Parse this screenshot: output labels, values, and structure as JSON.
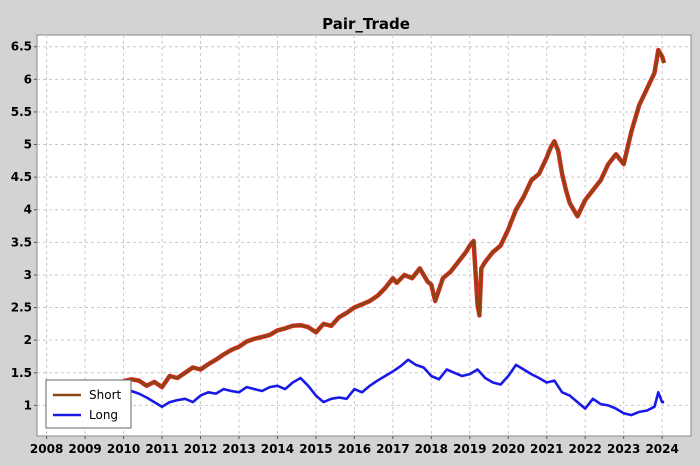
{
  "chart_data": {
    "type": "line",
    "title": "Pair_Trade",
    "xlabel": "",
    "ylabel": "",
    "xlim": [
      2007.75,
      2024.75
    ],
    "ylim": [
      0.53,
      6.68
    ],
    "grid": true,
    "legend_position": "bottom-left",
    "x_ticks": [
      "2008",
      "2009",
      "2010",
      "2011",
      "2012",
      "2013",
      "2014",
      "2015",
      "2016",
      "2017",
      "2018",
      "2019",
      "2020",
      "2021",
      "2022",
      "2023",
      "2024"
    ],
    "y_ticks": [
      "1",
      "1.5",
      "2",
      "2.5",
      "3",
      "3.5",
      "4",
      "4.5",
      "5",
      "5.5",
      "6",
      "6.5"
    ],
    "colors": {
      "background": "#d3d3d3",
      "plot_background": "#ffffff",
      "grid": "#c8c8c8"
    },
    "series": [
      {
        "name": "Short",
        "color": "#8b4513",
        "highlight_color": "#e00000",
        "x": [
          2010.0,
          2010.2,
          2010.4,
          2010.6,
          2010.8,
          2011.0,
          2011.2,
          2011.4,
          2011.6,
          2011.8,
          2012.0,
          2012.2,
          2012.4,
          2012.6,
          2012.8,
          2013.0,
          2013.2,
          2013.4,
          2013.6,
          2013.8,
          2014.0,
          2014.2,
          2014.4,
          2014.6,
          2014.8,
          2015.0,
          2015.2,
          2015.4,
          2015.6,
          2015.8,
          2016.0,
          2016.2,
          2016.4,
          2016.6,
          2016.8,
          2017.0,
          2017.1,
          2017.3,
          2017.5,
          2017.7,
          2017.9,
          2018.0,
          2018.1,
          2018.3,
          2018.5,
          2018.7,
          2018.9,
          2019.0,
          2019.1,
          2019.2,
          2019.25,
          2019.3,
          2019.4,
          2019.6,
          2019.8,
          2020.0,
          2020.2,
          2020.4,
          2020.6,
          2020.8,
          2021.0,
          2021.1,
          2021.2,
          2021.3,
          2021.4,
          2021.5,
          2021.6,
          2021.8,
          2022.0,
          2022.2,
          2022.4,
          2022.6,
          2022.8,
          2023.0,
          2023.2,
          2023.4,
          2023.6,
          2023.8,
          2023.9,
          2024.0,
          2024.05
        ],
        "values": [
          1.37,
          1.4,
          1.38,
          1.3,
          1.36,
          1.28,
          1.45,
          1.42,
          1.5,
          1.58,
          1.55,
          1.63,
          1.7,
          1.78,
          1.85,
          1.9,
          1.98,
          2.02,
          2.05,
          2.08,
          2.15,
          2.18,
          2.22,
          2.23,
          2.2,
          2.12,
          2.25,
          2.22,
          2.35,
          2.42,
          2.5,
          2.55,
          2.6,
          2.68,
          2.8,
          2.95,
          2.88,
          3.0,
          2.95,
          3.1,
          2.9,
          2.85,
          2.6,
          2.95,
          3.05,
          3.2,
          3.35,
          3.45,
          3.52,
          2.55,
          2.38,
          3.1,
          3.2,
          3.35,
          3.45,
          3.7,
          4.0,
          4.2,
          4.45,
          4.55,
          4.8,
          4.95,
          5.05,
          4.9,
          4.55,
          4.3,
          4.1,
          3.9,
          4.15,
          4.3,
          4.45,
          4.7,
          4.85,
          4.7,
          5.2,
          5.6,
          5.85,
          6.1,
          6.45,
          6.35,
          6.25
        ]
      },
      {
        "name": "Long",
        "color": "#1a1ae6",
        "x": [
          2010.0,
          2010.2,
          2010.4,
          2010.6,
          2010.8,
          2011.0,
          2011.2,
          2011.4,
          2011.6,
          2011.8,
          2012.0,
          2012.2,
          2012.4,
          2012.6,
          2012.8,
          2013.0,
          2013.2,
          2013.4,
          2013.6,
          2013.8,
          2014.0,
          2014.2,
          2014.4,
          2014.6,
          2014.8,
          2015.0,
          2015.2,
          2015.4,
          2015.6,
          2015.8,
          2016.0,
          2016.2,
          2016.4,
          2016.6,
          2016.8,
          2017.0,
          2017.2,
          2017.4,
          2017.6,
          2017.8,
          2018.0,
          2018.2,
          2018.4,
          2018.6,
          2018.8,
          2019.0,
          2019.2,
          2019.4,
          2019.6,
          2019.8,
          2020.0,
          2020.2,
          2020.4,
          2020.6,
          2020.8,
          2021.0,
          2021.2,
          2021.4,
          2021.6,
          2021.8,
          2022.0,
          2022.2,
          2022.4,
          2022.6,
          2022.8,
          2023.0,
          2023.2,
          2023.4,
          2023.6,
          2023.8,
          2023.9,
          2024.0,
          2024.05
        ],
        "values": [
          1.25,
          1.22,
          1.18,
          1.12,
          1.05,
          0.98,
          1.05,
          1.08,
          1.1,
          1.05,
          1.15,
          1.2,
          1.18,
          1.25,
          1.22,
          1.2,
          1.28,
          1.25,
          1.22,
          1.28,
          1.3,
          1.25,
          1.35,
          1.42,
          1.3,
          1.15,
          1.05,
          1.1,
          1.12,
          1.1,
          1.25,
          1.2,
          1.3,
          1.38,
          1.45,
          1.52,
          1.6,
          1.7,
          1.62,
          1.58,
          1.45,
          1.4,
          1.55,
          1.5,
          1.45,
          1.48,
          1.55,
          1.42,
          1.35,
          1.32,
          1.45,
          1.62,
          1.55,
          1.48,
          1.42,
          1.35,
          1.38,
          1.2,
          1.15,
          1.05,
          0.95,
          1.1,
          1.02,
          1.0,
          0.95,
          0.88,
          0.85,
          0.9,
          0.92,
          0.98,
          1.2,
          1.05,
          1.05
        ]
      }
    ]
  }
}
